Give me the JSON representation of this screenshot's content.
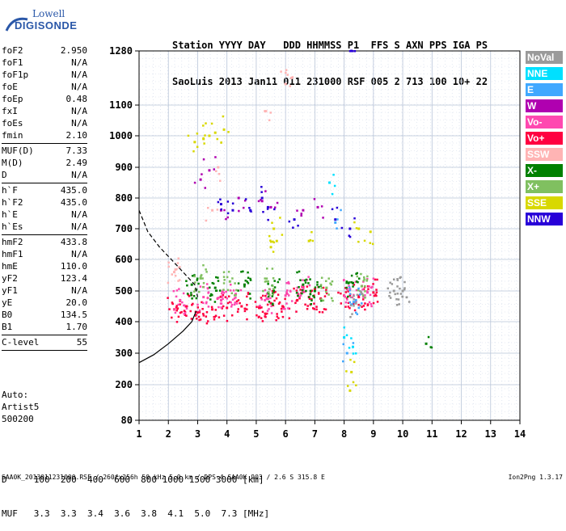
{
  "logo": {
    "line1": "Lowell",
    "line2": "DIGISONDE"
  },
  "header": {
    "line1": "Station YYYY DAY   DDD HHMMSS P1  FFS S AXN PPS IGA PS",
    "line2": "SaoLuis 2013 Jan11 011 231000 RSF 005 2 713 100 10+ 22"
  },
  "params": {
    "group1": [
      {
        "name": "foF2",
        "value": "2.950"
      },
      {
        "name": "foF1",
        "value": "N/A"
      },
      {
        "name": "foF1p",
        "value": "N/A"
      },
      {
        "name": "foE",
        "value": "N/A"
      },
      {
        "name": "foEp",
        "value": "0.48"
      },
      {
        "name": "fxI",
        "value": "N/A"
      },
      {
        "name": "foEs",
        "value": "N/A"
      },
      {
        "name": "fmin",
        "value": "2.10"
      }
    ],
    "group2": [
      {
        "name": "MUF(D)",
        "value": "7.33"
      },
      {
        "name": "M(D)",
        "value": "2.49"
      },
      {
        "name": "D",
        "value": "N/A"
      }
    ],
    "group3": [
      {
        "name": "h`F",
        "value": "435.0"
      },
      {
        "name": "h`F2",
        "value": "435.0"
      },
      {
        "name": "h`E",
        "value": "N/A"
      },
      {
        "name": "h`Es",
        "value": "N/A"
      }
    ],
    "group4": [
      {
        "name": "hmF2",
        "value": "433.8"
      },
      {
        "name": "hmF1",
        "value": "N/A"
      },
      {
        "name": "hmE",
        "value": "110.0"
      },
      {
        "name": "yF2",
        "value": "123.4"
      },
      {
        "name": "yF1",
        "value": "N/A"
      },
      {
        "name": "yE",
        "value": "20.0"
      },
      {
        "name": "B0",
        "value": "134.5"
      },
      {
        "name": "B1",
        "value": "1.70"
      }
    ],
    "group5": [
      {
        "name": "C-level",
        "value": "55"
      }
    ]
  },
  "autoscaling": {
    "line1": "Auto:",
    "line2": "Artist5",
    "line3": "500200"
  },
  "legend": [
    {
      "label": "NoVal",
      "color": "#9a9a9a"
    },
    {
      "label": "NNE",
      "color": "#00e0ff"
    },
    {
      "label": "E",
      "color": "#40a8ff"
    },
    {
      "label": "W",
      "color": "#b000b0"
    },
    {
      "label": "Vo-",
      "color": "#ff48b0"
    },
    {
      "label": "Vo+",
      "color": "#ff0040"
    },
    {
      "label": "SSW",
      "color": "#ffb4b4"
    },
    {
      "label": "X-",
      "color": "#008000"
    },
    {
      "label": "X+",
      "color": "#80c060"
    },
    {
      "label": "SSE",
      "color": "#d8d800"
    },
    {
      "label": "NNW",
      "color": "#2800d8"
    }
  ],
  "chart_data": {
    "type": "scatter",
    "title": "",
    "xlabel": "",
    "ylabel": "",
    "xlim": [
      1,
      14
    ],
    "ylim": [
      80,
      1280
    ],
    "x_ticks": [
      1,
      2,
      3,
      4,
      5,
      6,
      7,
      8,
      9,
      10,
      11,
      12,
      13,
      14
    ],
    "y_ticks": [
      80,
      200,
      300,
      400,
      500,
      600,
      700,
      800,
      900,
      1000,
      1100,
      1280
    ],
    "grid": true,
    "y_scale": "nonlinear (compressed below 400 km)",
    "legend_placement": "right",
    "series": [
      {
        "name": "Vo+",
        "color": "#ff0040",
        "points": [
          [
            2.2,
            440
          ],
          [
            2.6,
            450
          ],
          [
            3.0,
            430
          ],
          [
            3.5,
            440
          ],
          [
            4.0,
            445
          ],
          [
            4.5,
            450
          ],
          [
            5.1,
            445
          ],
          [
            5.5,
            460
          ],
          [
            5.9,
            450
          ],
          [
            6.4,
            470
          ],
          [
            6.8,
            480
          ],
          [
            7.2,
            475
          ],
          [
            8.0,
            485
          ],
          [
            8.5,
            480
          ],
          [
            9.0,
            495
          ]
        ]
      },
      {
        "name": "Vo-",
        "color": "#ff48b0",
        "points": [
          [
            2.4,
            470
          ],
          [
            3.2,
            480
          ],
          [
            3.8,
            470
          ],
          [
            4.3,
            490
          ],
          [
            5.3,
            470
          ],
          [
            6.0,
            485
          ],
          [
            6.6,
            505
          ],
          [
            8.2,
            505
          ],
          [
            8.8,
            495
          ]
        ]
      },
      {
        "name": "X-",
        "color": "#008000",
        "points": [
          [
            2.8,
            520
          ],
          [
            3.6,
            510
          ],
          [
            4.6,
            520
          ],
          [
            5.6,
            500
          ],
          [
            6.6,
            520
          ],
          [
            7.0,
            500
          ],
          [
            8.3,
            525
          ],
          [
            10.8,
            330
          ]
        ]
      },
      {
        "name": "X+",
        "color": "#80c060",
        "points": [
          [
            3.1,
            540
          ],
          [
            4.1,
            530
          ],
          [
            5.4,
            530
          ],
          [
            7.4,
            510
          ],
          [
            8.6,
            515
          ]
        ]
      },
      {
        "name": "SSE",
        "color": "#d8d800",
        "points": [
          [
            2.9,
            980
          ],
          [
            3.2,
            990
          ],
          [
            3.4,
            1000
          ],
          [
            3.6,
            1010
          ],
          [
            3.9,
            1020
          ],
          [
            5.5,
            640
          ],
          [
            5.7,
            660
          ],
          [
            5.6,
            700
          ],
          [
            6.8,
            660
          ],
          [
            8.2,
            180
          ],
          [
            8.25,
            240
          ],
          [
            8.5,
            700
          ],
          [
            8.9,
            690
          ]
        ]
      },
      {
        "name": "W",
        "color": "#b000b0",
        "points": [
          [
            3.1,
            860
          ],
          [
            3.4,
            890
          ],
          [
            3.8,
            760
          ],
          [
            4.4,
            800
          ],
          [
            5.2,
            790
          ],
          [
            5.5,
            770
          ],
          [
            6.6,
            760
          ],
          [
            7.1,
            770
          ]
        ]
      },
      {
        "name": "NNW",
        "color": "#2800d8",
        "points": [
          [
            3.8,
            780
          ],
          [
            4.2,
            760
          ],
          [
            4.8,
            760
          ],
          [
            5.2,
            800
          ],
          [
            5.4,
            770
          ],
          [
            6.3,
            730
          ],
          [
            7.7,
            730
          ],
          [
            8.2,
            700
          ],
          [
            8.25,
            1280
          ]
        ]
      },
      {
        "name": "SSW",
        "color": "#ffb4b4",
        "points": [
          [
            2.2,
            560
          ],
          [
            3.5,
            760
          ],
          [
            3.7,
            900
          ],
          [
            5.3,
            1080
          ],
          [
            6.0,
            1170
          ],
          [
            6.2,
            1190
          ]
        ]
      },
      {
        "name": "NNE",
        "color": "#00e0ff",
        "points": [
          [
            7.5,
            850
          ],
          [
            8.0,
            350
          ],
          [
            8.3,
            320
          ]
        ]
      },
      {
        "name": "E",
        "color": "#40a8ff",
        "points": [
          [
            7.7,
            720
          ],
          [
            8.1,
            300
          ],
          [
            8.4,
            470
          ]
        ]
      },
      {
        "name": "NoVal",
        "color": "#9a9a9a",
        "points": [
          [
            9.7,
            500
          ],
          [
            10.0,
            500
          ],
          [
            8.4,
            460
          ]
        ]
      }
    ]
  },
  "bottom": {
    "d_line": "D     100  200  400  600  800 1000 1500 3000 [km]",
    "muf_line": "MUF   3.3  3.3  3.4  3.6  3.8  4.1  5.0  7.3 [MHz]",
    "footer": "SAA0K_2013011231000.RSF / 260fx256h 50 kHz 5.0 km / DPS-4 SAA0K 903 / 2.6 S 315.8 E",
    "version": "Ion2Png 1.3.17"
  }
}
